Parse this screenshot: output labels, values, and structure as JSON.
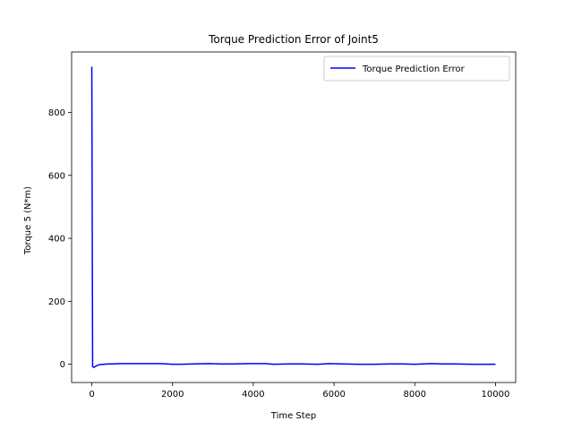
{
  "chart_data": {
    "type": "line",
    "title": "Torque Prediction Error of Joint5",
    "xlabel": "Time Step",
    "ylabel": "Torque 5 (N*m)",
    "xlim": [
      -500,
      10500
    ],
    "ylim": [
      -58,
      992
    ],
    "xticks": [
      0,
      2000,
      4000,
      6000,
      8000,
      10000
    ],
    "yticks": [
      0,
      200,
      400,
      600,
      800
    ],
    "grid": false,
    "legend_position": "top-right",
    "series": [
      {
        "name": "Torque Prediction Error",
        "color": "#0000ff",
        "x": [
          0,
          20,
          50,
          100,
          150,
          200,
          300,
          400,
          500,
          700,
          1000,
          1300,
          1700,
          2000,
          2200,
          2500,
          2900,
          3200,
          3500,
          3900,
          4100,
          4300,
          4500,
          4900,
          5200,
          5600,
          5900,
          6200,
          6600,
          7000,
          7400,
          7700,
          8000,
          8400,
          8700,
          9000,
          9400,
          9700,
          10000
        ],
        "y": [
          945,
          -7,
          -10,
          -6,
          -3,
          -1,
          0,
          1,
          1,
          2,
          2,
          2,
          2,
          0,
          0,
          1,
          2,
          1,
          1,
          2,
          2,
          2,
          0,
          1,
          1,
          0,
          2,
          1,
          0,
          0,
          1,
          1,
          0,
          2,
          1,
          1,
          0,
          0,
          0
        ]
      }
    ]
  }
}
